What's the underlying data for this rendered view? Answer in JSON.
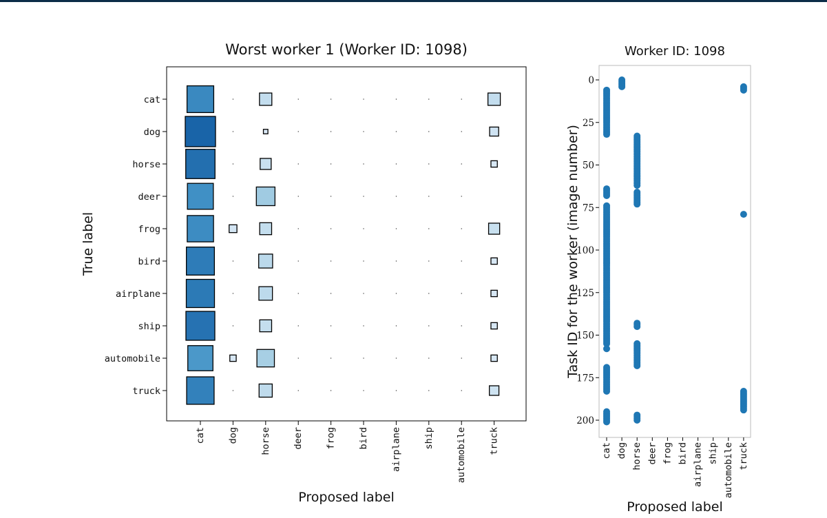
{
  "chart_data": [
    {
      "type": "heatmap",
      "title": "Worst worker 1 (Worker ID: 1098)",
      "xlabel": "Proposed label",
      "ylabel": "True label",
      "x_categories": [
        "cat",
        "dog",
        "horse",
        "deer",
        "frog",
        "bird",
        "airplane",
        "ship",
        "automobile",
        "truck"
      ],
      "y_categories": [
        "cat",
        "dog",
        "horse",
        "deer",
        "frog",
        "bird",
        "airplane",
        "ship",
        "automobile",
        "truck"
      ],
      "values": [
        [
          0.7,
          0.0,
          0.15,
          0.0,
          0.0,
          0.0,
          0.0,
          0.0,
          0.0,
          0.15
        ],
        [
          0.9,
          0.0,
          0.02,
          0.0,
          0.0,
          0.0,
          0.0,
          0.0,
          0.0,
          0.08
        ],
        [
          0.84,
          0.0,
          0.12,
          0.0,
          0.0,
          0.0,
          0.0,
          0.0,
          0.0,
          0.04
        ],
        [
          0.66,
          0.0,
          0.34,
          0.0,
          0.0,
          0.0,
          0.0,
          0.0,
          0.0,
          0.0
        ],
        [
          0.68,
          0.06,
          0.14,
          0.0,
          0.0,
          0.0,
          0.0,
          0.0,
          0.0,
          0.12
        ],
        [
          0.77,
          0.0,
          0.19,
          0.0,
          0.0,
          0.0,
          0.0,
          0.0,
          0.0,
          0.04
        ],
        [
          0.78,
          0.0,
          0.18,
          0.0,
          0.0,
          0.0,
          0.0,
          0.0,
          0.0,
          0.04
        ],
        [
          0.82,
          0.0,
          0.14,
          0.0,
          0.0,
          0.0,
          0.0,
          0.0,
          0.0,
          0.04
        ],
        [
          0.62,
          0.04,
          0.3,
          0.0,
          0.0,
          0.0,
          0.0,
          0.0,
          0.0,
          0.04
        ],
        [
          0.74,
          0.0,
          0.17,
          0.0,
          0.0,
          0.0,
          0.0,
          0.0,
          0.0,
          0.09
        ]
      ],
      "colormap": "Blues"
    },
    {
      "type": "scatter",
      "title": "Worker ID: 1098",
      "xlabel": "Proposed label",
      "ylabel": "Task ID for the worker (image number)",
      "categories": [
        "cat",
        "dog",
        "horse",
        "deer",
        "frog",
        "bird",
        "airplane",
        "ship",
        "automobile",
        "truck"
      ],
      "yticks": [
        0,
        25,
        50,
        75,
        100,
        125,
        150,
        175,
        200
      ],
      "ylim": [
        200,
        -4
      ],
      "y_inverted": true,
      "color": "#1f77b4",
      "points": {
        "cat": [
          [
            6,
            32
          ],
          [
            64,
            68
          ],
          [
            74,
            155
          ],
          [
            158,
            158
          ],
          [
            169,
            183
          ],
          [
            195,
            201
          ]
        ],
        "dog": [
          [
            0,
            4
          ]
        ],
        "horse": [
          [
            33,
            62
          ],
          [
            66,
            73
          ],
          [
            143,
            145
          ],
          [
            155,
            168
          ],
          [
            197,
            200
          ]
        ],
        "truck": [
          [
            4,
            6
          ],
          [
            79,
            79
          ],
          [
            183,
            194
          ]
        ]
      }
    }
  ]
}
